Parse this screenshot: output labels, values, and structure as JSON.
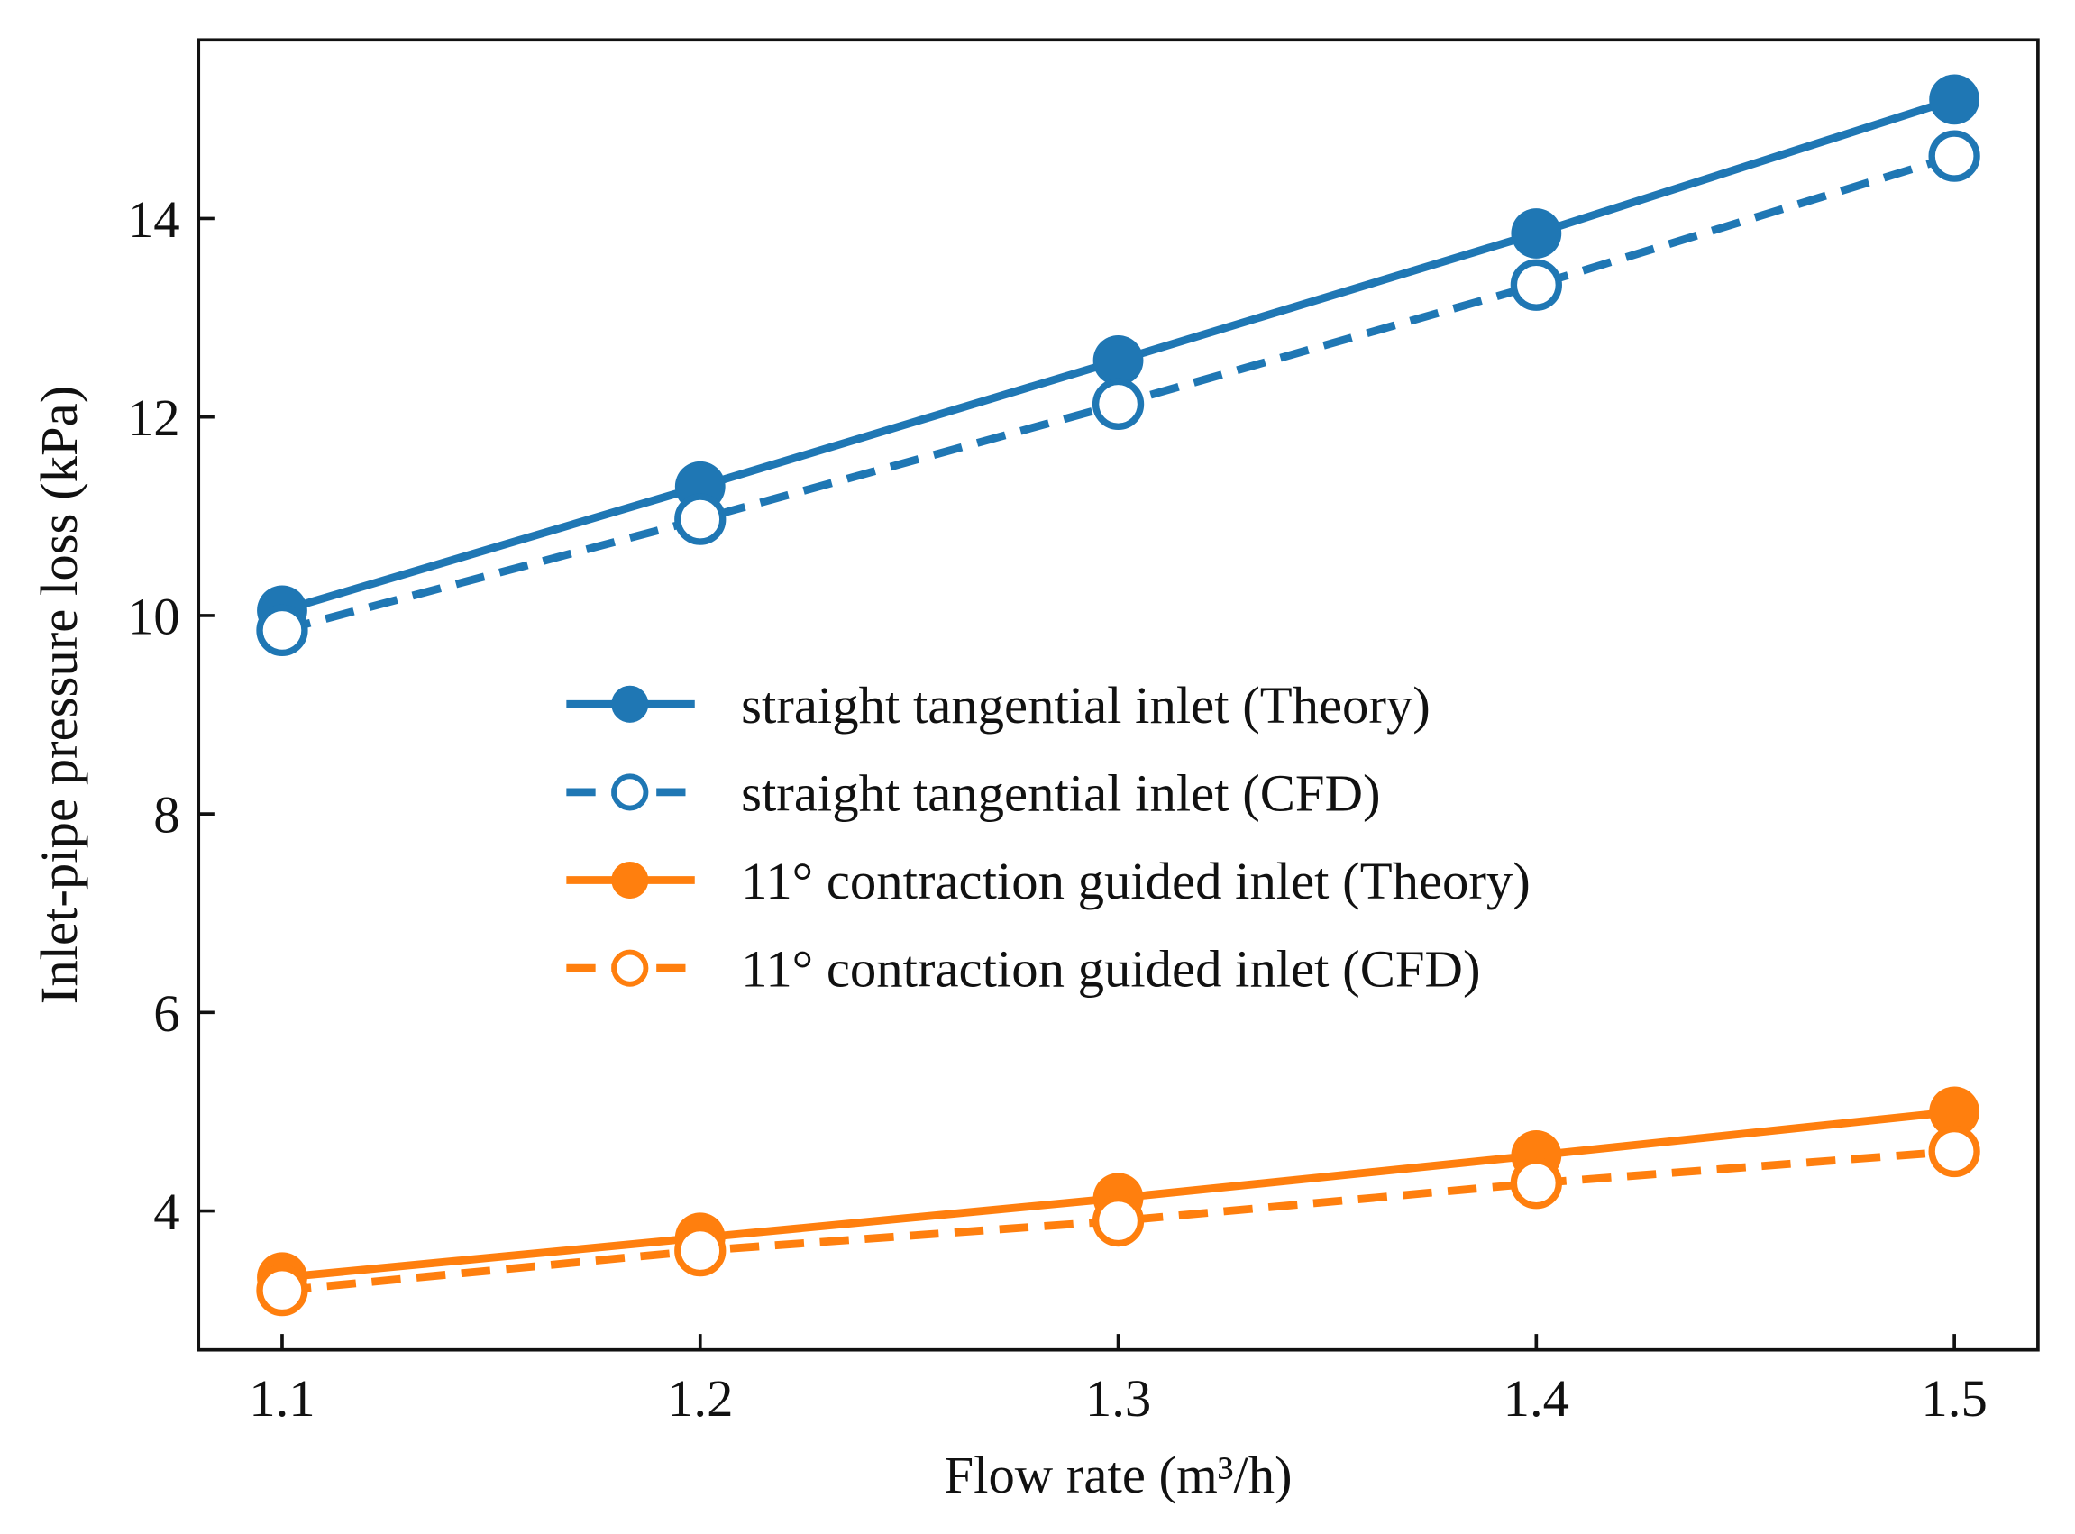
{
  "chart_data": {
    "type": "line",
    "title": "",
    "xlabel": "Flow rate (m³/h)",
    "ylabel": "Inlet-pipe pressure loss (kPa)",
    "x": [
      1.1,
      1.2,
      1.3,
      1.4,
      1.5
    ],
    "xticks": [
      "1.1",
      "1.2",
      "1.3",
      "1.4",
      "1.5"
    ],
    "yticks": [
      "4",
      "6",
      "8",
      "10",
      "12",
      "14"
    ],
    "xlim": [
      1.08,
      1.52
    ],
    "ylim": [
      2.6,
      15.8
    ],
    "grid": false,
    "legend_position": "center",
    "series": [
      {
        "name": "straight tangential inlet (Theory)",
        "color": "#1f77b4",
        "style": "solid",
        "marker": "filled",
        "values": [
          10.05,
          11.3,
          12.57,
          13.85,
          15.2
        ]
      },
      {
        "name": "straight tangential inlet (CFD)",
        "color": "#1f77b4",
        "style": "dashed",
        "marker": "open",
        "values": [
          9.85,
          10.97,
          12.13,
          13.33,
          14.63
        ]
      },
      {
        "name": "11° contraction guided inlet (Theory)",
        "color": "#ff7f0e",
        "style": "solid",
        "marker": "filled",
        "values": [
          3.33,
          3.73,
          4.13,
          4.56,
          5.0
        ]
      },
      {
        "name": "11° contraction guided inlet (CFD)",
        "color": "#ff7f0e",
        "style": "dashed",
        "marker": "open",
        "values": [
          3.2,
          3.6,
          3.9,
          4.28,
          4.6
        ]
      }
    ]
  }
}
